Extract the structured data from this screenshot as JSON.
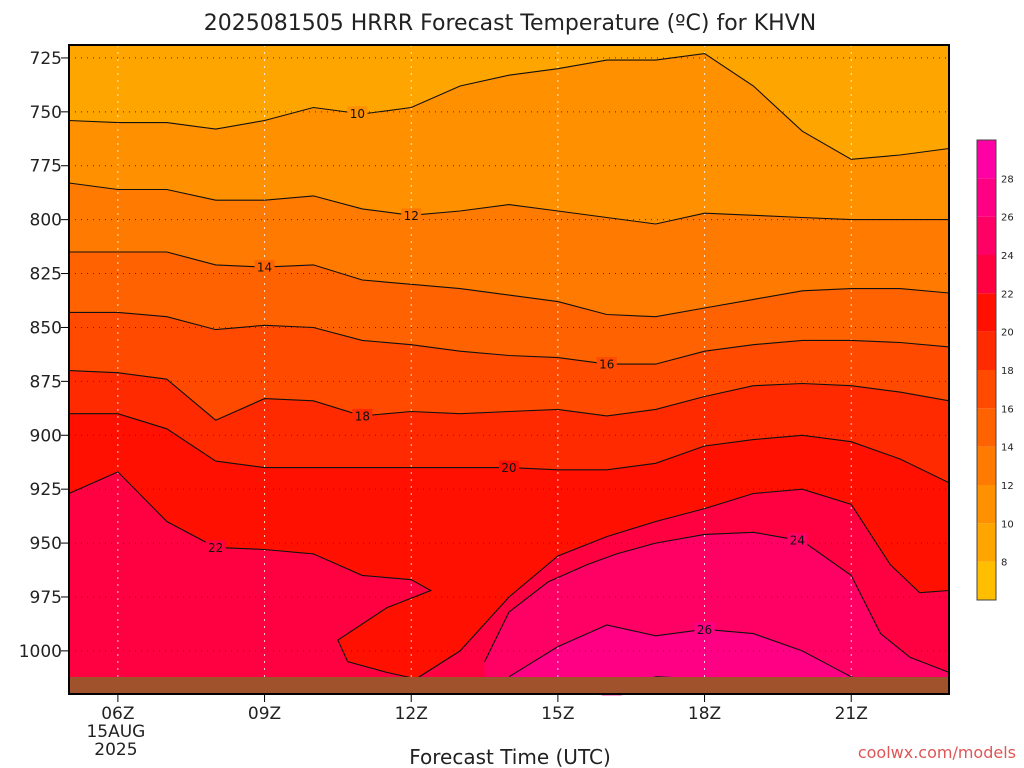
{
  "chart_data": {
    "type": "heatmap",
    "title": "2025081505 HRRR Forecast Temperature (ºC) for KHVN",
    "xlabel": "Forecast Time (UTC)",
    "ylabel": "",
    "credit": "coolwx.com/models",
    "x_range_hours": [
      5,
      23
    ],
    "y_range_hpa": [
      1020,
      719
    ],
    "y_ticks": [
      725,
      750,
      775,
      800,
      825,
      850,
      875,
      900,
      925,
      950,
      975,
      1000
    ],
    "x_ticks": [
      {
        "hour": 6,
        "label": "06Z",
        "sub": [
          "15AUG",
          "2025"
        ]
      },
      {
        "hour": 9,
        "label": "09Z",
        "sub": []
      },
      {
        "hour": 12,
        "label": "12Z",
        "sub": []
      },
      {
        "hour": 15,
        "label": "15Z",
        "sub": []
      },
      {
        "hour": 18,
        "label": "18Z",
        "sub": []
      },
      {
        "hour": 21,
        "label": "21Z",
        "sub": []
      }
    ],
    "grid": true,
    "colorbar": {
      "min": 6,
      "max": 30,
      "ticks": [
        8,
        10,
        12,
        14,
        16,
        18,
        20,
        22,
        24,
        26,
        28
      ],
      "colors": [
        "#ffbe00",
        "#ffa500",
        "#ff9000",
        "#ff7a00",
        "#ff6200",
        "#ff4a00",
        "#ff2a00",
        "#ff1000",
        "#ff0040",
        "#ff0065",
        "#ff0085",
        "#ff00a5"
      ]
    },
    "contours": [
      {
        "level": 10,
        "label_hour": 10.9,
        "x": [
          5,
          6,
          7,
          8,
          9,
          10,
          11,
          12,
          13,
          14,
          15,
          16,
          17,
          18,
          19,
          20,
          21,
          22,
          23
        ],
        "y": [
          754,
          755,
          755,
          758,
          754,
          748,
          751,
          748,
          738,
          733,
          730,
          726,
          726,
          723,
          738,
          759,
          772,
          770,
          767
        ]
      },
      {
        "level": 12,
        "label_hour": 12,
        "x": [
          5,
          6,
          7,
          8,
          9,
          10,
          11,
          12,
          13,
          14,
          15,
          16,
          17,
          18,
          19,
          20,
          21,
          22,
          23
        ],
        "y": [
          783,
          786,
          786,
          791,
          791,
          789,
          795,
          798,
          796,
          793,
          796,
          799,
          802,
          797,
          798,
          799,
          800,
          800,
          800
        ]
      },
      {
        "level": 14,
        "label_hour": 9,
        "x": [
          5,
          6,
          7,
          8,
          9,
          10,
          11,
          12,
          13,
          14,
          15,
          16,
          17,
          18,
          19,
          20,
          21,
          22,
          23
        ],
        "y": [
          815,
          815,
          815,
          821,
          822,
          821,
          828,
          830,
          832,
          835,
          838,
          844,
          845,
          841,
          837,
          833,
          832,
          832,
          834
        ]
      },
      {
        "level": 16,
        "label_hour": 16,
        "x": [
          5,
          6,
          7,
          8,
          9,
          10,
          11,
          12,
          13,
          14,
          15,
          16,
          17,
          18,
          19,
          20,
          21,
          22,
          23
        ],
        "y": [
          843,
          843,
          845,
          851,
          849,
          850,
          856,
          858,
          861,
          863,
          864,
          867,
          867,
          861,
          858,
          856,
          856,
          857,
          859
        ]
      },
      {
        "level": 18,
        "label_hour": 11,
        "x": [
          5,
          6,
          7,
          8,
          9,
          10,
          11,
          12,
          13,
          14,
          15,
          16,
          17,
          18,
          19,
          20,
          21,
          22,
          23
        ],
        "y": [
          870,
          871,
          874,
          893,
          883,
          884,
          891,
          889,
          890,
          889,
          888,
          891,
          888,
          882,
          877,
          876,
          877,
          880,
          884
        ]
      },
      {
        "level": 20,
        "label_hour": 14,
        "x": [
          5,
          6,
          7,
          8,
          9,
          10,
          11,
          12,
          13,
          14,
          15,
          16,
          17,
          18,
          19,
          20,
          21,
          22,
          23
        ],
        "y": [
          890,
          890,
          897,
          912,
          915,
          915,
          915,
          915,
          915,
          915,
          916,
          916,
          913,
          905,
          902,
          900,
          903,
          911,
          922
        ]
      },
      {
        "level": 22,
        "label_hour": 8,
        "x": [
          5,
          6,
          7,
          8,
          9,
          10,
          11,
          12,
          12.4,
          11.5,
          10.5,
          10.7,
          11.5,
          12.1,
          13,
          14,
          15,
          16,
          17,
          18,
          19,
          20,
          21,
          21.8,
          22.4,
          23
        ],
        "y": [
          927,
          917,
          940,
          952,
          953,
          955,
          965,
          967,
          972,
          980,
          995,
          1005,
          1010,
          1013,
          1000,
          975,
          956,
          947,
          940,
          934,
          927,
          925,
          932,
          960,
          973,
          972
        ]
      },
      {
        "level": 24,
        "label_hour": 19.9,
        "x": [
          13.5,
          14,
          14.8,
          15.6,
          16.2,
          17,
          18,
          19,
          20,
          21,
          21.6,
          22.2,
          23
        ],
        "y": [
          1005,
          982,
          968,
          960,
          955,
          950,
          946,
          945,
          949,
          965,
          992,
          1003,
          1010
        ]
      },
      {
        "level": 26,
        "label_hour": 18,
        "x": [
          14,
          15,
          16,
          17,
          18,
          19,
          20,
          21,
          21.8
        ],
        "y": [
          1012,
          998,
          988,
          993,
          990,
          992,
          1000,
          1012,
          1018
        ]
      },
      {
        "level": 28,
        "label_hour": 16.1,
        "x": [
          16,
          17,
          18,
          19,
          20
        ],
        "y": [
          1018,
          1012,
          1013,
          1015,
          1017
        ]
      }
    ]
  }
}
